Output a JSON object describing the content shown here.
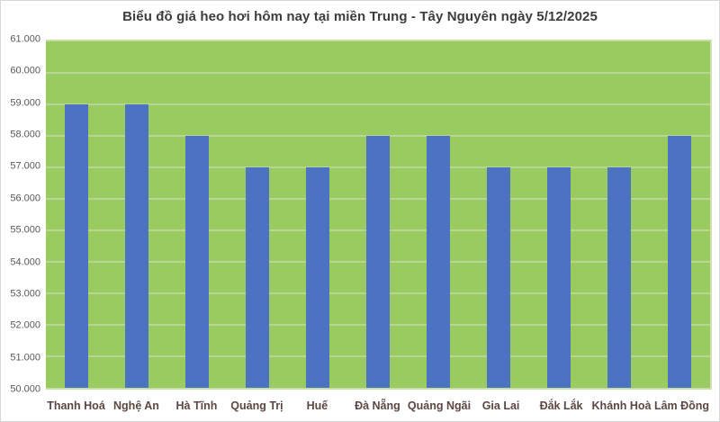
{
  "chart_data": {
    "type": "bar",
    "title": "Biểu đồ giá heo hơi hôm nay tại miền Trung - Tây Nguyên ngày 5/12/2025",
    "categories": [
      "Thanh Hoá",
      "Nghệ An",
      "Hà Tĩnh",
      "Quảng Trị",
      "Huế",
      "Đà Nẵng",
      "Quảng Ngãi",
      "Gia Lai",
      "Đắk Lắk",
      "Khánh Hoà",
      "Lâm Đồng"
    ],
    "values": [
      59000,
      59000,
      58000,
      57000,
      57000,
      58000,
      58000,
      57000,
      57000,
      57000,
      58000
    ],
    "xlabel": "",
    "ylabel": "",
    "ylim": [
      50000,
      61000
    ],
    "ytick_step": 1000,
    "ytick_labels": [
      "50.000",
      "51.000",
      "52.000",
      "53.000",
      "54.000",
      "55.000",
      "56.000",
      "57.000",
      "58.000",
      "59.000",
      "60.000",
      "61.000"
    ],
    "grid": "horizontal",
    "legend_position": "none",
    "colors": {
      "bar_fill": "#4c72c2",
      "plot_background": "#9acb61",
      "gridline": "#b9d594",
      "title_text": "#3d3d3d",
      "y_label_text": "#595959",
      "x_label_text": "#5d4742",
      "chart_background": "#ffffff",
      "chart_border": "#d8d8d8"
    }
  }
}
